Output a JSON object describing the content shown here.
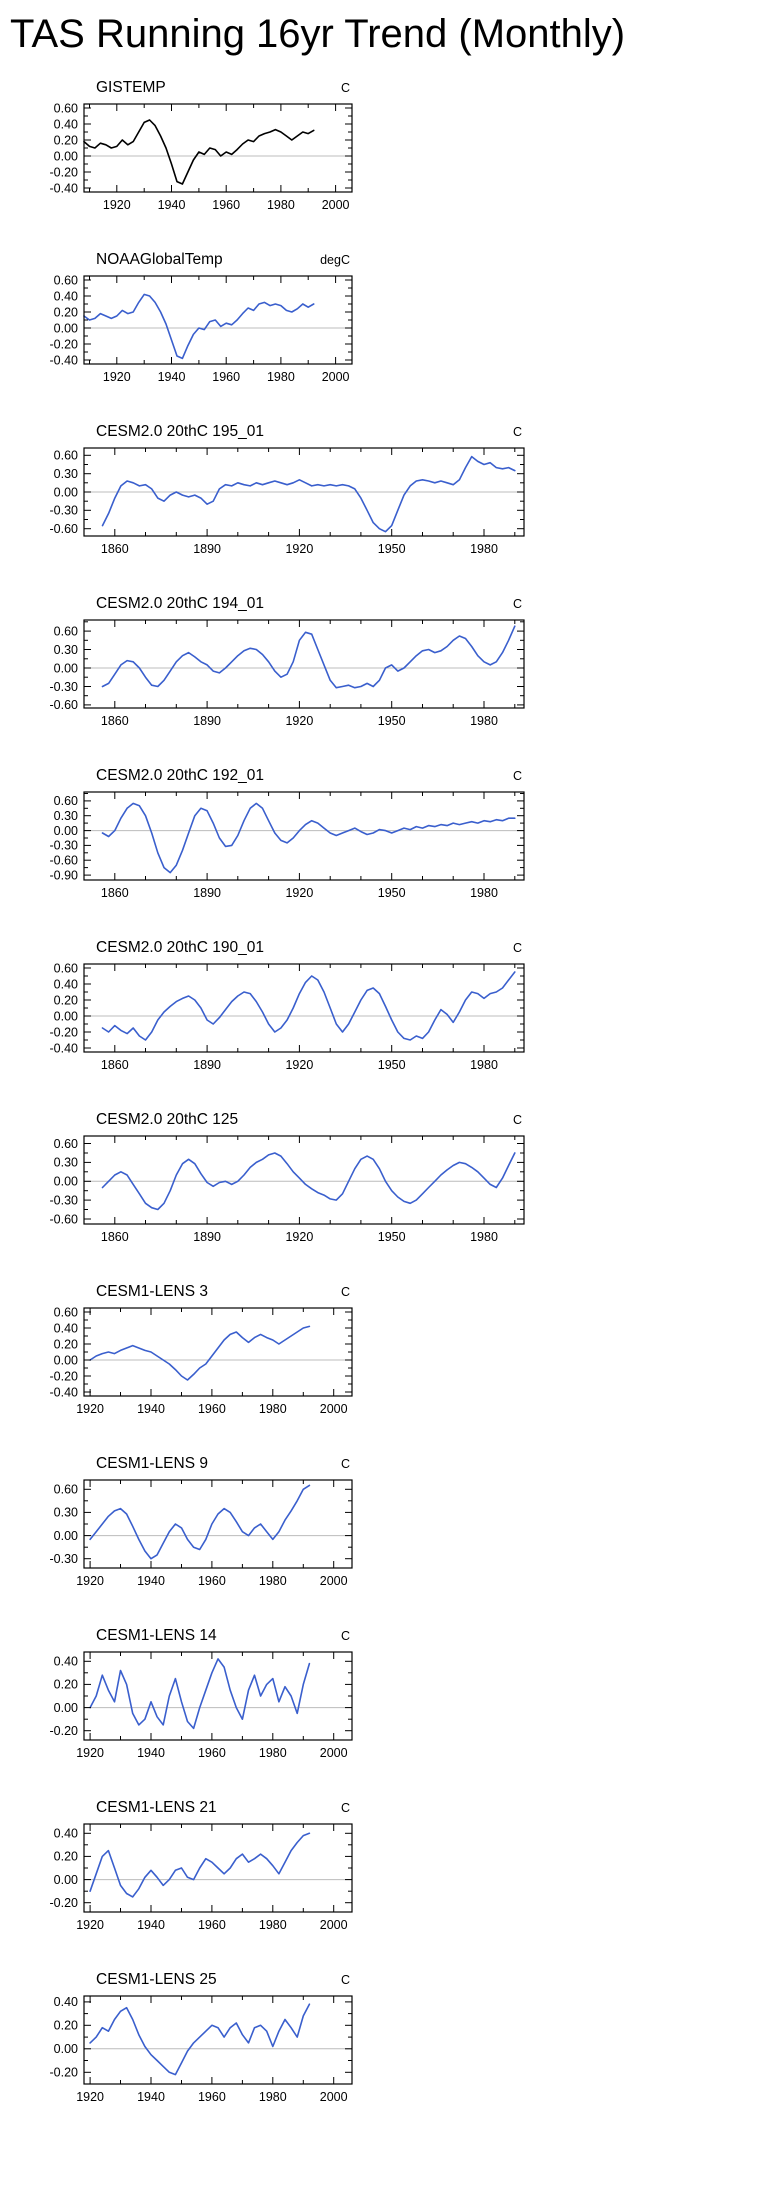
{
  "page_title": "TAS Running 16yr Trend (Monthly)",
  "colors": {
    "line_blue": "#3a5fcd",
    "line_black": "#000000",
    "zero_line": "#bcbcbc",
    "axis": "#000000"
  },
  "chart_data": [
    {
      "type": "line",
      "title": "GISTEMP",
      "units": "C",
      "color": "#000000",
      "xlim": [
        1908,
        2006
      ],
      "xticks": [
        1920,
        1940,
        1960,
        1980,
        2000
      ],
      "ylim": [
        -0.45,
        0.65
      ],
      "yticks": [
        0.6,
        0.4,
        0.2,
        0.0,
        -0.2,
        -0.4
      ],
      "x_start": 1908,
      "x_step": 2,
      "values": [
        0.18,
        0.12,
        0.1,
        0.16,
        0.14,
        0.1,
        0.12,
        0.2,
        0.14,
        0.18,
        0.3,
        0.42,
        0.45,
        0.38,
        0.25,
        0.1,
        -0.1,
        -0.32,
        -0.35,
        -0.2,
        -0.05,
        0.05,
        0.02,
        0.1,
        0.08,
        0.0,
        0.05,
        0.02,
        0.08,
        0.15,
        0.2,
        0.18,
        0.25,
        0.28,
        0.3,
        0.33,
        0.3,
        0.25,
        0.2,
        0.25,
        0.3,
        0.28,
        0.32
      ]
    },
    {
      "type": "line",
      "title": "NOAAGlobalTemp",
      "units": "degC",
      "color": "#3a5fcd",
      "xlim": [
        1908,
        2006
      ],
      "xticks": [
        1920,
        1940,
        1960,
        1980,
        2000
      ],
      "ylim": [
        -0.45,
        0.65
      ],
      "yticks": [
        0.6,
        0.4,
        0.2,
        0.0,
        -0.2,
        -0.4
      ],
      "x_start": 1908,
      "x_step": 2,
      "values": [
        0.15,
        0.1,
        0.12,
        0.18,
        0.15,
        0.12,
        0.15,
        0.22,
        0.18,
        0.2,
        0.32,
        0.42,
        0.4,
        0.32,
        0.2,
        0.05,
        -0.15,
        -0.35,
        -0.38,
        -0.22,
        -0.08,
        0.0,
        -0.02,
        0.08,
        0.1,
        0.02,
        0.06,
        0.04,
        0.1,
        0.18,
        0.25,
        0.22,
        0.3,
        0.32,
        0.28,
        0.3,
        0.28,
        0.22,
        0.2,
        0.24,
        0.3,
        0.26,
        0.3
      ]
    },
    {
      "type": "line",
      "title": "CESM2.0 20thC 195_01",
      "units": "C",
      "color": "#3a5fcd",
      "xlim": [
        1850,
        1993
      ],
      "xticks": [
        1860,
        1890,
        1920,
        1950,
        1980
      ],
      "ylim": [
        -0.72,
        0.72
      ],
      "yticks": [
        0.6,
        0.3,
        0.0,
        -0.3,
        -0.6
      ],
      "x_start": 1856,
      "x_step": 2,
      "values": [
        -0.55,
        -0.35,
        -0.1,
        0.1,
        0.18,
        0.15,
        0.1,
        0.12,
        0.05,
        -0.1,
        -0.15,
        -0.05,
        0.0,
        -0.05,
        -0.08,
        -0.05,
        -0.1,
        -0.2,
        -0.15,
        0.05,
        0.12,
        0.1,
        0.15,
        0.12,
        0.1,
        0.15,
        0.12,
        0.15,
        0.18,
        0.15,
        0.12,
        0.15,
        0.2,
        0.15,
        0.1,
        0.12,
        0.1,
        0.12,
        0.1,
        0.12,
        0.1,
        0.05,
        -0.1,
        -0.3,
        -0.5,
        -0.6,
        -0.65,
        -0.55,
        -0.3,
        -0.05,
        0.1,
        0.18,
        0.2,
        0.18,
        0.15,
        0.18,
        0.15,
        0.12,
        0.2,
        0.4,
        0.58,
        0.5,
        0.45,
        0.48,
        0.4,
        0.38,
        0.4,
        0.35
      ]
    },
    {
      "type": "line",
      "title": "CESM2.0 20thC 194_01",
      "units": "C",
      "color": "#3a5fcd",
      "xlim": [
        1850,
        1993
      ],
      "xticks": [
        1860,
        1890,
        1920,
        1950,
        1980
      ],
      "ylim": [
        -0.65,
        0.78
      ],
      "yticks": [
        0.6,
        0.3,
        0.0,
        -0.3,
        -0.6
      ],
      "x_start": 1856,
      "x_step": 2,
      "values": [
        -0.3,
        -0.25,
        -0.1,
        0.05,
        0.12,
        0.1,
        0.0,
        -0.15,
        -0.28,
        -0.3,
        -0.2,
        -0.05,
        0.1,
        0.2,
        0.25,
        0.18,
        0.1,
        0.05,
        -0.05,
        -0.08,
        0.0,
        0.1,
        0.2,
        0.28,
        0.32,
        0.3,
        0.22,
        0.1,
        -0.05,
        -0.15,
        -0.1,
        0.1,
        0.45,
        0.58,
        0.55,
        0.3,
        0.05,
        -0.2,
        -0.32,
        -0.3,
        -0.28,
        -0.32,
        -0.3,
        -0.25,
        -0.3,
        -0.2,
        0.0,
        0.05,
        -0.05,
        0.0,
        0.1,
        0.2,
        0.28,
        0.3,
        0.25,
        0.28,
        0.35,
        0.45,
        0.52,
        0.48,
        0.35,
        0.2,
        0.1,
        0.05,
        0.1,
        0.25,
        0.45,
        0.68
      ]
    },
    {
      "type": "line",
      "title": "CESM2.0 20thC 192_01",
      "units": "C",
      "color": "#3a5fcd",
      "xlim": [
        1850,
        1993
      ],
      "xticks": [
        1860,
        1890,
        1920,
        1950,
        1980
      ],
      "ylim": [
        -1.0,
        0.78
      ],
      "yticks": [
        0.6,
        0.3,
        0.0,
        -0.3,
        -0.6,
        -0.9
      ],
      "x_start": 1856,
      "x_step": 2,
      "values": [
        -0.05,
        -0.12,
        0.0,
        0.25,
        0.45,
        0.55,
        0.5,
        0.3,
        -0.05,
        -0.45,
        -0.75,
        -0.85,
        -0.7,
        -0.4,
        -0.05,
        0.3,
        0.45,
        0.4,
        0.15,
        -0.15,
        -0.32,
        -0.3,
        -0.1,
        0.2,
        0.45,
        0.55,
        0.45,
        0.2,
        -0.05,
        -0.2,
        -0.25,
        -0.15,
        0.0,
        0.12,
        0.2,
        0.15,
        0.05,
        -0.05,
        -0.1,
        -0.05,
        0.0,
        0.05,
        -0.02,
        -0.08,
        -0.05,
        0.02,
        0.0,
        -0.05,
        0.0,
        0.05,
        0.02,
        0.08,
        0.05,
        0.1,
        0.08,
        0.12,
        0.1,
        0.15,
        0.12,
        0.15,
        0.18,
        0.15,
        0.2,
        0.18,
        0.22,
        0.2,
        0.25,
        0.25
      ]
    },
    {
      "type": "line",
      "title": "CESM2.0 20thC 190_01",
      "units": "C",
      "color": "#3a5fcd",
      "xlim": [
        1850,
        1993
      ],
      "xticks": [
        1860,
        1890,
        1920,
        1950,
        1980
      ],
      "ylim": [
        -0.45,
        0.65
      ],
      "yticks": [
        0.6,
        0.4,
        0.2,
        0.0,
        -0.2,
        -0.4
      ],
      "x_start": 1856,
      "x_step": 2,
      "values": [
        -0.15,
        -0.2,
        -0.12,
        -0.18,
        -0.22,
        -0.15,
        -0.25,
        -0.3,
        -0.2,
        -0.05,
        0.05,
        0.12,
        0.18,
        0.22,
        0.25,
        0.2,
        0.1,
        -0.05,
        -0.1,
        -0.02,
        0.08,
        0.18,
        0.25,
        0.3,
        0.28,
        0.18,
        0.05,
        -0.1,
        -0.2,
        -0.15,
        -0.05,
        0.1,
        0.28,
        0.42,
        0.5,
        0.45,
        0.3,
        0.1,
        -0.1,
        -0.2,
        -0.1,
        0.05,
        0.2,
        0.32,
        0.35,
        0.28,
        0.12,
        -0.05,
        -0.2,
        -0.28,
        -0.3,
        -0.25,
        -0.28,
        -0.2,
        -0.05,
        0.08,
        0.02,
        -0.08,
        0.05,
        0.2,
        0.3,
        0.28,
        0.22,
        0.28,
        0.3,
        0.35,
        0.45,
        0.55
      ]
    },
    {
      "type": "line",
      "title": "CESM2.0 20thC 125",
      "units": "C",
      "color": "#3a5fcd",
      "xlim": [
        1850,
        1993
      ],
      "xticks": [
        1860,
        1890,
        1920,
        1950,
        1980
      ],
      "ylim": [
        -0.68,
        0.72
      ],
      "yticks": [
        0.6,
        0.3,
        0.0,
        -0.3,
        -0.6
      ],
      "x_start": 1856,
      "x_step": 2,
      "values": [
        -0.1,
        0.0,
        0.1,
        0.15,
        0.1,
        -0.05,
        -0.2,
        -0.35,
        -0.42,
        -0.45,
        -0.35,
        -0.15,
        0.1,
        0.28,
        0.35,
        0.28,
        0.12,
        -0.02,
        -0.08,
        -0.02,
        0.0,
        -0.05,
        0.0,
        0.1,
        0.22,
        0.3,
        0.35,
        0.42,
        0.45,
        0.4,
        0.28,
        0.15,
        0.05,
        -0.05,
        -0.12,
        -0.18,
        -0.22,
        -0.28,
        -0.3,
        -0.2,
        0.0,
        0.2,
        0.35,
        0.4,
        0.35,
        0.2,
        0.0,
        -0.15,
        -0.25,
        -0.32,
        -0.35,
        -0.3,
        -0.2,
        -0.1,
        0.0,
        0.1,
        0.18,
        0.25,
        0.3,
        0.28,
        0.22,
        0.15,
        0.05,
        -0.05,
        -0.1,
        0.05,
        0.25,
        0.45
      ]
    },
    {
      "type": "line",
      "title": "CESM1-LENS 3",
      "units": "C",
      "color": "#3a5fcd",
      "xlim": [
        1918,
        2006
      ],
      "xticks": [
        1920,
        1940,
        1960,
        1980,
        2000
      ],
      "ylim": [
        -0.45,
        0.65
      ],
      "yticks": [
        0.6,
        0.4,
        0.2,
        0.0,
        -0.2,
        -0.4
      ],
      "x_start": 1920,
      "x_step": 2,
      "values": [
        0.0,
        0.05,
        0.08,
        0.1,
        0.08,
        0.12,
        0.15,
        0.18,
        0.15,
        0.12,
        0.1,
        0.05,
        0.0,
        -0.05,
        -0.12,
        -0.2,
        -0.25,
        -0.18,
        -0.1,
        -0.05,
        0.05,
        0.15,
        0.25,
        0.32,
        0.35,
        0.28,
        0.22,
        0.28,
        0.32,
        0.28,
        0.25,
        0.2,
        0.25,
        0.3,
        0.35,
        0.4,
        0.42
      ]
    },
    {
      "type": "line",
      "title": "CESM1-LENS 9",
      "units": "C",
      "color": "#3a5fcd",
      "xlim": [
        1918,
        2006
      ],
      "xticks": [
        1920,
        1940,
        1960,
        1980,
        2000
      ],
      "ylim": [
        -0.42,
        0.72
      ],
      "yticks": [
        0.6,
        0.3,
        0.0,
        -0.3
      ],
      "x_start": 1920,
      "x_step": 2,
      "values": [
        -0.05,
        0.05,
        0.15,
        0.25,
        0.32,
        0.35,
        0.28,
        0.12,
        -0.05,
        -0.2,
        -0.3,
        -0.25,
        -0.1,
        0.05,
        0.15,
        0.1,
        -0.05,
        -0.15,
        -0.18,
        -0.05,
        0.15,
        0.28,
        0.35,
        0.3,
        0.18,
        0.05,
        0.0,
        0.1,
        0.15,
        0.05,
        -0.05,
        0.05,
        0.2,
        0.32,
        0.45,
        0.6,
        0.65
      ]
    },
    {
      "type": "line",
      "title": "CESM1-LENS 14",
      "units": "C",
      "color": "#3a5fcd",
      "xlim": [
        1918,
        2006
      ],
      "xticks": [
        1920,
        1940,
        1960,
        1980,
        2000
      ],
      "ylim": [
        -0.28,
        0.48
      ],
      "yticks": [
        0.4,
        0.2,
        0.0,
        -0.2
      ],
      "x_start": 1920,
      "x_step": 2,
      "values": [
        0.0,
        0.1,
        0.28,
        0.15,
        0.05,
        0.32,
        0.2,
        -0.05,
        -0.15,
        -0.1,
        0.05,
        -0.08,
        -0.15,
        0.1,
        0.25,
        0.05,
        -0.12,
        -0.18,
        0.0,
        0.15,
        0.3,
        0.42,
        0.35,
        0.15,
        0.0,
        -0.1,
        0.15,
        0.28,
        0.1,
        0.2,
        0.25,
        0.05,
        0.18,
        0.1,
        -0.05,
        0.2,
        0.38
      ]
    },
    {
      "type": "line",
      "title": "CESM1-LENS 21",
      "units": "C",
      "color": "#3a5fcd",
      "xlim": [
        1918,
        2006
      ],
      "xticks": [
        1920,
        1940,
        1960,
        1980,
        2000
      ],
      "ylim": [
        -0.28,
        0.48
      ],
      "yticks": [
        0.4,
        0.2,
        0.0,
        -0.2
      ],
      "x_start": 1920,
      "x_step": 2,
      "values": [
        -0.1,
        0.05,
        0.2,
        0.25,
        0.1,
        -0.05,
        -0.12,
        -0.15,
        -0.08,
        0.02,
        0.08,
        0.02,
        -0.05,
        0.0,
        0.08,
        0.1,
        0.02,
        0.0,
        0.1,
        0.18,
        0.15,
        0.1,
        0.05,
        0.1,
        0.18,
        0.22,
        0.15,
        0.18,
        0.22,
        0.18,
        0.12,
        0.05,
        0.15,
        0.25,
        0.32,
        0.38,
        0.4
      ]
    },
    {
      "type": "line",
      "title": "CESM1-LENS 25",
      "units": "C",
      "color": "#3a5fcd",
      "xlim": [
        1918,
        2006
      ],
      "xticks": [
        1920,
        1940,
        1960,
        1980,
        2000
      ],
      "ylim": [
        -0.3,
        0.45
      ],
      "yticks": [
        0.4,
        0.2,
        0.0,
        -0.2
      ],
      "x_start": 1920,
      "x_step": 2,
      "values": [
        0.05,
        0.1,
        0.18,
        0.15,
        0.25,
        0.32,
        0.35,
        0.25,
        0.12,
        0.02,
        -0.05,
        -0.1,
        -0.15,
        -0.2,
        -0.22,
        -0.12,
        -0.02,
        0.05,
        0.1,
        0.15,
        0.2,
        0.18,
        0.1,
        0.18,
        0.22,
        0.12,
        0.05,
        0.18,
        0.2,
        0.15,
        0.02,
        0.15,
        0.25,
        0.18,
        0.1,
        0.28,
        0.38
      ]
    }
  ]
}
